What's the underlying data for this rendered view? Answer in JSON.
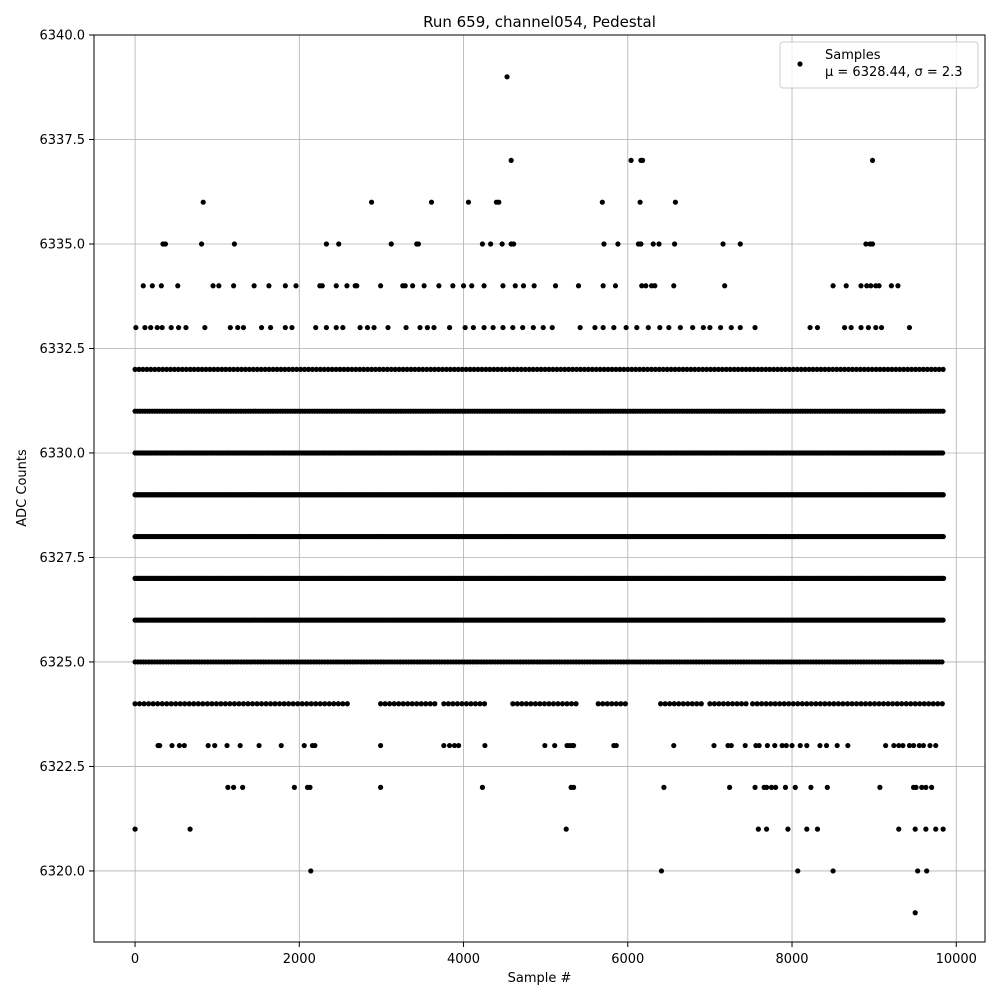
{
  "chart_data": {
    "type": "scatter",
    "title": "Run 659, channel054, Pedestal",
    "xlabel": "Sample #",
    "ylabel": "ADC Counts",
    "xlim": [
      -500,
      10350
    ],
    "ylim": [
      6318.3,
      6340
    ],
    "x_ticks": [
      0,
      2000,
      4000,
      6000,
      8000,
      10000
    ],
    "x_tick_labels": [
      "0",
      "2000",
      "4000",
      "6000",
      "8000",
      "10000"
    ],
    "y_ticks": [
      6320.0,
      6322.5,
      6325.0,
      6327.5,
      6330.0,
      6332.5,
      6335.0,
      6337.5,
      6340.0
    ],
    "y_tick_labels": [
      "6320.0",
      "6322.5",
      "6325.0",
      "6327.5",
      "6330.0",
      "6332.5",
      "6335.0",
      "6337.5",
      "6340.0"
    ],
    "grid": true,
    "legend_position": "top-right",
    "marker_color": "#000000",
    "series": [
      {
        "name": "Samples",
        "legend_stats": "μ = 6328.44, σ = 2.3",
        "points": [
          [
            4530,
            6339
          ],
          [
            4580,
            6337
          ],
          [
            6040,
            6337
          ],
          [
            6160,
            6337
          ],
          [
            6180,
            6337
          ],
          [
            8980,
            6337
          ],
          [
            830,
            6336
          ],
          [
            2880,
            6336
          ],
          [
            3610,
            6336
          ],
          [
            4060,
            6336
          ],
          [
            4400,
            6336
          ],
          [
            4430,
            6336
          ],
          [
            5690,
            6336
          ],
          [
            6150,
            6336
          ],
          [
            6580,
            6336
          ],
          [
            340,
            6335
          ],
          [
            370,
            6335
          ],
          [
            810,
            6335
          ],
          [
            1210,
            6335
          ],
          [
            2330,
            6335
          ],
          [
            2480,
            6335
          ],
          [
            3120,
            6335
          ],
          [
            3430,
            6335
          ],
          [
            3450,
            6335
          ],
          [
            4230,
            6335
          ],
          [
            4330,
            6335
          ],
          [
            4470,
            6335
          ],
          [
            4580,
            6335
          ],
          [
            4610,
            6335
          ],
          [
            5710,
            6335
          ],
          [
            5880,
            6335
          ],
          [
            6130,
            6335
          ],
          [
            6160,
            6335
          ],
          [
            6310,
            6335
          ],
          [
            6380,
            6335
          ],
          [
            6570,
            6335
          ],
          [
            7160,
            6335
          ],
          [
            7370,
            6335
          ],
          [
            8900,
            6335
          ],
          [
            8950,
            6335
          ],
          [
            8980,
            6335
          ],
          [
            100,
            6334
          ],
          [
            210,
            6334
          ],
          [
            320,
            6334
          ],
          [
            520,
            6334
          ],
          [
            950,
            6334
          ],
          [
            1020,
            6334
          ],
          [
            1200,
            6334
          ],
          [
            1450,
            6334
          ],
          [
            1630,
            6334
          ],
          [
            1830,
            6334
          ],
          [
            1960,
            6334
          ],
          [
            2250,
            6334
          ],
          [
            2280,
            6334
          ],
          [
            2450,
            6334
          ],
          [
            2580,
            6334
          ],
          [
            2680,
            6334
          ],
          [
            2700,
            6334
          ],
          [
            2990,
            6334
          ],
          [
            3260,
            6334
          ],
          [
            3290,
            6334
          ],
          [
            3380,
            6334
          ],
          [
            3520,
            6334
          ],
          [
            3700,
            6334
          ],
          [
            3870,
            6334
          ],
          [
            4000,
            6334
          ],
          [
            4100,
            6334
          ],
          [
            4250,
            6334
          ],
          [
            4480,
            6334
          ],
          [
            4630,
            6334
          ],
          [
            4730,
            6334
          ],
          [
            4860,
            6334
          ],
          [
            5120,
            6334
          ],
          [
            5400,
            6334
          ],
          [
            5700,
            6334
          ],
          [
            5850,
            6334
          ],
          [
            6170,
            6334
          ],
          [
            6220,
            6334
          ],
          [
            6290,
            6334
          ],
          [
            6330,
            6334
          ],
          [
            6560,
            6334
          ],
          [
            7180,
            6334
          ],
          [
            8500,
            6334
          ],
          [
            8660,
            6334
          ],
          [
            8840,
            6334
          ],
          [
            8910,
            6334
          ],
          [
            8960,
            6334
          ],
          [
            9020,
            6334
          ],
          [
            9060,
            6334
          ],
          [
            9210,
            6334
          ],
          [
            9290,
            6334
          ],
          [
            10,
            6333
          ],
          [
            120,
            6333
          ],
          [
            190,
            6333
          ],
          [
            270,
            6333
          ],
          [
            330,
            6333
          ],
          [
            440,
            6333
          ],
          [
            530,
            6333
          ],
          [
            620,
            6333
          ],
          [
            850,
            6333
          ],
          [
            1160,
            6333
          ],
          [
            1250,
            6333
          ],
          [
            1320,
            6333
          ],
          [
            1540,
            6333
          ],
          [
            1650,
            6333
          ],
          [
            1830,
            6333
          ],
          [
            1910,
            6333
          ],
          [
            2200,
            6333
          ],
          [
            2330,
            6333
          ],
          [
            2450,
            6333
          ],
          [
            2530,
            6333
          ],
          [
            2740,
            6333
          ],
          [
            2830,
            6333
          ],
          [
            2910,
            6333
          ],
          [
            3080,
            6333
          ],
          [
            3300,
            6333
          ],
          [
            3470,
            6333
          ],
          [
            3560,
            6333
          ],
          [
            3640,
            6333
          ],
          [
            3830,
            6333
          ],
          [
            4020,
            6333
          ],
          [
            4120,
            6333
          ],
          [
            4250,
            6333
          ],
          [
            4360,
            6333
          ],
          [
            4480,
            6333
          ],
          [
            4600,
            6333
          ],
          [
            4720,
            6333
          ],
          [
            4850,
            6333
          ],
          [
            4970,
            6333
          ],
          [
            5080,
            6333
          ],
          [
            5420,
            6333
          ],
          [
            5600,
            6333
          ],
          [
            5700,
            6333
          ],
          [
            5830,
            6333
          ],
          [
            5980,
            6333
          ],
          [
            6110,
            6333
          ],
          [
            6250,
            6333
          ],
          [
            6390,
            6333
          ],
          [
            6500,
            6333
          ],
          [
            6640,
            6333
          ],
          [
            6790,
            6333
          ],
          [
            6920,
            6333
          ],
          [
            7000,
            6333
          ],
          [
            7130,
            6333
          ],
          [
            7260,
            6333
          ],
          [
            7370,
            6333
          ],
          [
            7550,
            6333
          ],
          [
            8220,
            6333
          ],
          [
            8310,
            6333
          ],
          [
            8640,
            6333
          ],
          [
            8720,
            6333
          ],
          [
            8840,
            6333
          ],
          [
            8930,
            6333
          ],
          [
            9020,
            6333
          ],
          [
            9090,
            6333
          ],
          [
            9430,
            6333
          ],
          [
            0,
            6321
          ],
          [
            670,
            6321
          ],
          [
            5250,
            6321
          ],
          [
            7590,
            6321
          ],
          [
            7690,
            6321
          ],
          [
            7950,
            6321
          ],
          [
            8180,
            6321
          ],
          [
            8310,
            6321
          ],
          [
            9300,
            6321
          ],
          [
            9500,
            6321
          ],
          [
            9630,
            6321
          ],
          [
            9750,
            6321
          ],
          [
            9840,
            6321
          ],
          [
            1130,
            6322
          ],
          [
            1200,
            6322
          ],
          [
            1310,
            6322
          ],
          [
            1940,
            6322
          ],
          [
            2100,
            6322
          ],
          [
            2130,
            6322
          ],
          [
            2990,
            6322
          ],
          [
            4230,
            6322
          ],
          [
            5310,
            6322
          ],
          [
            5340,
            6322
          ],
          [
            6440,
            6322
          ],
          [
            7240,
            6322
          ],
          [
            7550,
            6322
          ],
          [
            7660,
            6322
          ],
          [
            7690,
            6322
          ],
          [
            7750,
            6322
          ],
          [
            7800,
            6322
          ],
          [
            7920,
            6322
          ],
          [
            8040,
            6322
          ],
          [
            8230,
            6322
          ],
          [
            8430,
            6322
          ],
          [
            9070,
            6322
          ],
          [
            9480,
            6322
          ],
          [
            9510,
            6322
          ],
          [
            9580,
            6322
          ],
          [
            9630,
            6322
          ],
          [
            9700,
            6322
          ],
          [
            2140,
            6320
          ],
          [
            6410,
            6320
          ],
          [
            8070,
            6320
          ],
          [
            8500,
            6320
          ],
          [
            9530,
            6320
          ],
          [
            9640,
            6320
          ],
          [
            9500,
            6319
          ],
          [
            280,
            6323
          ],
          [
            300,
            6323
          ],
          [
            450,
            6323
          ],
          [
            540,
            6323
          ],
          [
            600,
            6323
          ],
          [
            890,
            6323
          ],
          [
            970,
            6323
          ],
          [
            1120,
            6323
          ],
          [
            1280,
            6323
          ],
          [
            1510,
            6323
          ],
          [
            1780,
            6323
          ],
          [
            2060,
            6323
          ],
          [
            2160,
            6323
          ],
          [
            2190,
            6323
          ],
          [
            2990,
            6323
          ],
          [
            3760,
            6323
          ],
          [
            3830,
            6323
          ],
          [
            3890,
            6323
          ],
          [
            3940,
            6323
          ],
          [
            4260,
            6323
          ],
          [
            4990,
            6323
          ],
          [
            5110,
            6323
          ],
          [
            5260,
            6323
          ],
          [
            5290,
            6323
          ],
          [
            5320,
            6323
          ],
          [
            5340,
            6323
          ],
          [
            5830,
            6323
          ],
          [
            5860,
            6323
          ],
          [
            6560,
            6323
          ],
          [
            7050,
            6323
          ],
          [
            7220,
            6323
          ],
          [
            7260,
            6323
          ],
          [
            7430,
            6323
          ],
          [
            7560,
            6323
          ],
          [
            7600,
            6323
          ],
          [
            7700,
            6323
          ],
          [
            7790,
            6323
          ],
          [
            7880,
            6323
          ],
          [
            7930,
            6323
          ],
          [
            8000,
            6323
          ],
          [
            8100,
            6323
          ],
          [
            8180,
            6323
          ],
          [
            8340,
            6323
          ],
          [
            8420,
            6323
          ],
          [
            8550,
            6323
          ],
          [
            8680,
            6323
          ],
          [
            9140,
            6323
          ],
          [
            9240,
            6323
          ],
          [
            9300,
            6323
          ],
          [
            9350,
            6323
          ],
          [
            9430,
            6323
          ],
          [
            9480,
            6323
          ],
          [
            9550,
            6323
          ],
          [
            9600,
            6323
          ],
          [
            9680,
            6323
          ],
          [
            9750,
            6323
          ]
        ]
      }
    ],
    "dense_levels": [
      {
        "y": 6332,
        "ranges": [
          [
            0,
            9850
          ]
        ],
        "step": 48
      },
      {
        "y": 6331,
        "ranges": [
          [
            0,
            9850
          ]
        ],
        "step": 30
      },
      {
        "y": 6330,
        "ranges": [
          [
            0,
            9850
          ]
        ],
        "step": 22
      },
      {
        "y": 6329,
        "ranges": [
          [
            0,
            9850
          ]
        ],
        "step": 14
      },
      {
        "y": 6328,
        "ranges": [
          [
            0,
            9850
          ]
        ],
        "step": 14
      },
      {
        "y": 6327,
        "ranges": [
          [
            0,
            9850
          ]
        ],
        "step": 18
      },
      {
        "y": 6326,
        "ranges": [
          [
            0,
            9850
          ]
        ],
        "step": 24
      },
      {
        "y": 6325,
        "ranges": [
          [
            0,
            9850
          ]
        ],
        "step": 34
      },
      {
        "y": 6324,
        "ranges": [
          [
            0,
            2600
          ],
          [
            2990,
            3700
          ],
          [
            3760,
            4300
          ],
          [
            4600,
            5400
          ],
          [
            5640,
            6000
          ],
          [
            6400,
            6900
          ],
          [
            7000,
            7440
          ],
          [
            7520,
            9850
          ]
        ],
        "step": 55
      }
    ]
  }
}
